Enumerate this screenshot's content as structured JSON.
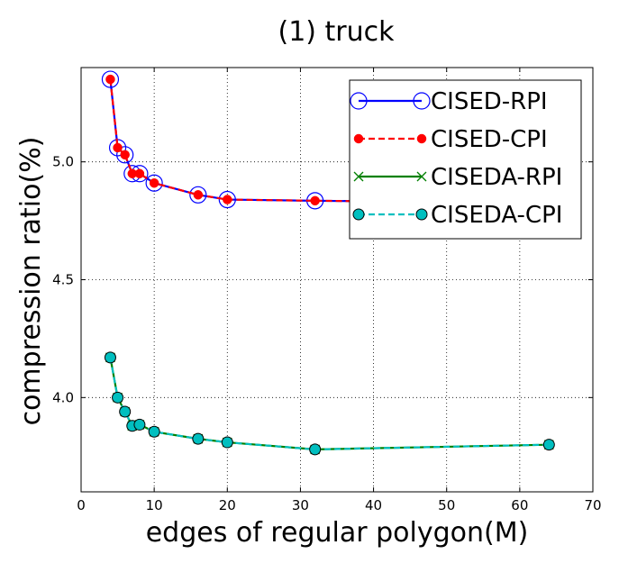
{
  "chart_data": {
    "type": "line",
    "title": "(1) truck",
    "xlabel": "edges of regular polygon(M)",
    "ylabel": "compression ratio(%)",
    "xlim": [
      0,
      70
    ],
    "ylim": [
      3.6,
      5.4
    ],
    "xticks": [
      "0",
      "10",
      "20",
      "30",
      "40",
      "50",
      "60",
      "70"
    ],
    "yticks": [
      "4.0",
      "4.5",
      "5.0"
    ],
    "grid": true,
    "legend_position": "top-right",
    "series": [
      {
        "name": "CISED-RPI",
        "color": "#0000ff",
        "line_style": "solid",
        "marker": "open-circle",
        "x": [
          4,
          5,
          6,
          7,
          8,
          10,
          16,
          20,
          32,
          64
        ],
        "y": [
          5.35,
          5.06,
          5.03,
          4.95,
          4.95,
          4.91,
          4.86,
          4.84,
          4.835,
          4.825
        ]
      },
      {
        "name": "CISED-CPI",
        "color": "#ff0000",
        "line_style": "dashed",
        "marker": "filled-circle",
        "x": [
          4,
          5,
          6,
          7,
          8,
          10,
          16,
          20,
          32,
          64
        ],
        "y": [
          5.35,
          5.06,
          5.03,
          4.95,
          4.95,
          4.91,
          4.86,
          4.84,
          4.835,
          4.825
        ]
      },
      {
        "name": "CISEDA-RPI",
        "color": "#008000",
        "line_style": "solid",
        "marker": "x",
        "x": [
          4,
          5,
          6,
          7,
          8,
          10,
          16,
          20,
          32,
          64
        ],
        "y": [
          4.17,
          4.0,
          3.94,
          3.88,
          3.885,
          3.855,
          3.825,
          3.81,
          3.78,
          3.8
        ]
      },
      {
        "name": "CISEDA-CPI",
        "color": "#00bfbf",
        "line_style": "dashed",
        "marker": "cyan-circle",
        "x": [
          4,
          5,
          6,
          7,
          8,
          10,
          16,
          20,
          32,
          64
        ],
        "y": [
          4.17,
          4.0,
          3.94,
          3.88,
          3.885,
          3.855,
          3.825,
          3.81,
          3.78,
          3.8
        ]
      }
    ]
  }
}
